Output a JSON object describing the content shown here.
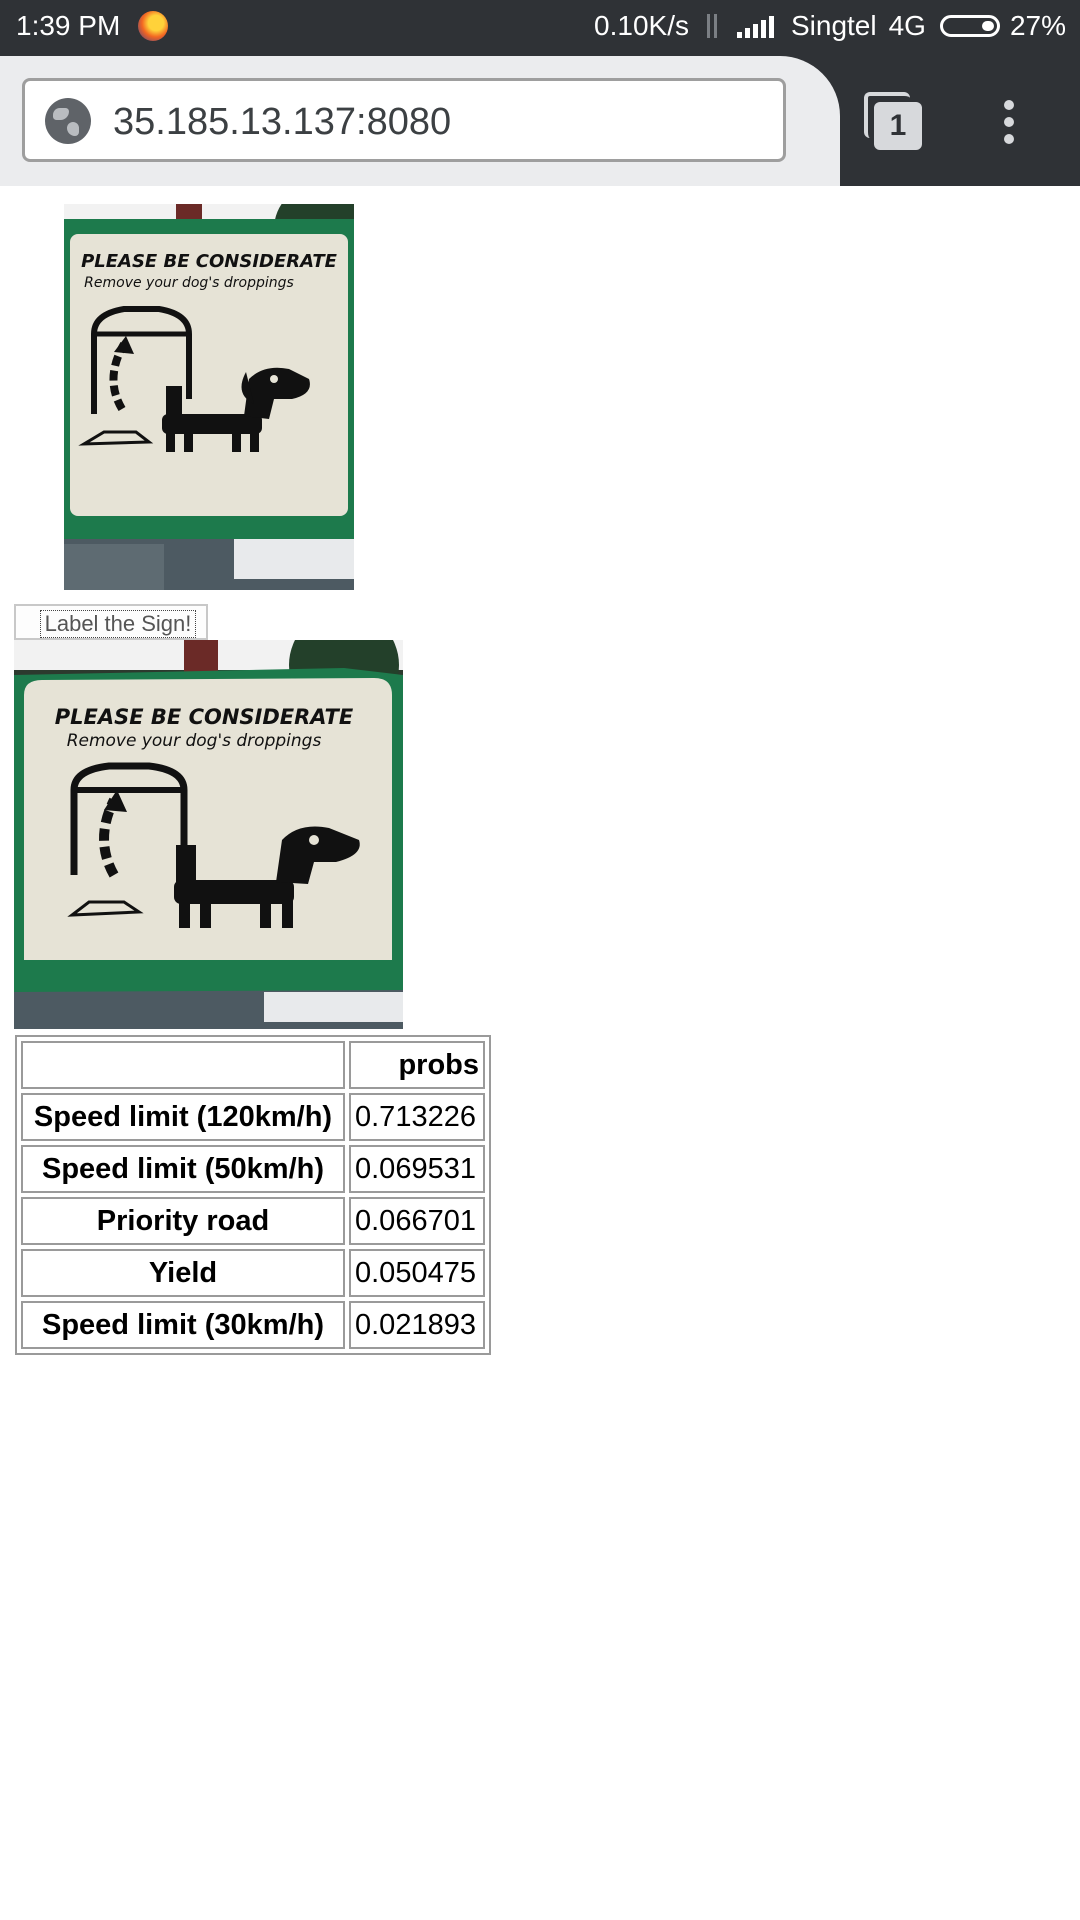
{
  "status_bar": {
    "time": "1:39 PM",
    "speed": "0.10K/s",
    "carrier": "Singtel",
    "network": "4G",
    "battery": "27%"
  },
  "browser": {
    "url": "35.185.13.137:8080",
    "tab_count": "1"
  },
  "page": {
    "image1_sign": {
      "line1": "PLEASE BE CONSIDERATE",
      "line2": "Remove your dog's droppings"
    },
    "button_label": "Label the Sign!",
    "image2_sign": {
      "line1": "PLEASE BE CONSIDERATE",
      "line2": "Remove your dog's droppings"
    },
    "table": {
      "header": [
        "",
        "probs"
      ],
      "rows": [
        {
          "label": "Speed limit (120km/h)",
          "prob": "0.713226"
        },
        {
          "label": "Speed limit (50km/h)",
          "prob": "0.069531"
        },
        {
          "label": "Priority road",
          "prob": "0.066701"
        },
        {
          "label": "Yield",
          "prob": "0.050475"
        },
        {
          "label": "Speed limit (30km/h)",
          "prob": "0.021893"
        }
      ]
    }
  },
  "colors": {
    "status_bar": "#2f3236",
    "url_bar": "#ebecee",
    "sign_green": "#1d7a4c",
    "sign_face": "#e6e3d6"
  }
}
